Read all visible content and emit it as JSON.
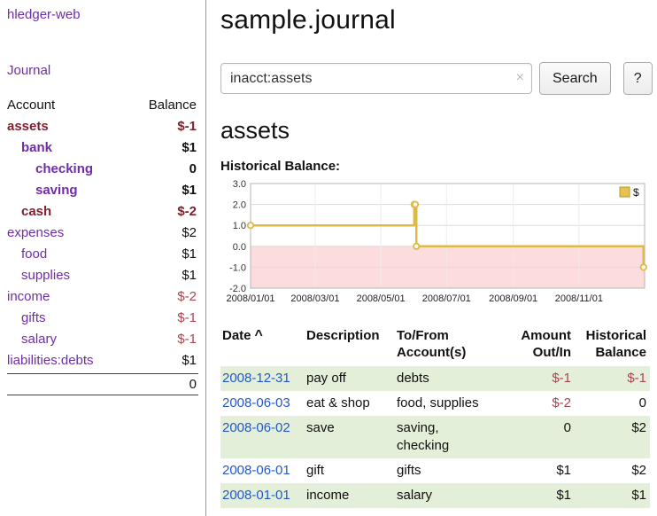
{
  "colors": {
    "sidebar_link": "#6f2da8",
    "date_link": "#2458c6",
    "negative": "#a94452",
    "negative_dark": "#7d1f2e",
    "row_stripe": "#e3efd8",
    "chart_line": "#ddba45",
    "chart_negative_area": "#fcdcdc",
    "legend_swatch": "#e6c34a"
  },
  "sidebar": {
    "app_title": "hledger-web",
    "journal_link": "Journal",
    "header": {
      "account": "Account",
      "balance": "Balance"
    },
    "accounts": [
      {
        "label": "assets",
        "balance": "$-1",
        "level": 0,
        "bold": true,
        "name_style": "negative-dark",
        "balance_style": "negative-dark"
      },
      {
        "label": "bank",
        "balance": "$1",
        "level": 1,
        "bold": true,
        "name_style": "purple",
        "balance_style": "normal"
      },
      {
        "label": "checking",
        "balance": "0",
        "level": 2,
        "bold": true,
        "name_style": "purple",
        "balance_style": "normal"
      },
      {
        "label": "saving",
        "balance": "$1",
        "level": 2,
        "bold": true,
        "name_style": "purple",
        "balance_style": "normal"
      },
      {
        "label": "cash",
        "balance": "$-2",
        "level": 1,
        "bold": true,
        "name_style": "negative-dark",
        "balance_style": "negative-dark"
      },
      {
        "label": "expenses",
        "balance": "$2",
        "level": 0,
        "bold": false,
        "name_style": "purple",
        "balance_style": "normal"
      },
      {
        "label": "food",
        "balance": "$1",
        "level": 1,
        "bold": false,
        "name_style": "purple",
        "balance_style": "normal"
      },
      {
        "label": "supplies",
        "balance": "$1",
        "level": 1,
        "bold": false,
        "name_style": "purple",
        "balance_style": "normal"
      },
      {
        "label": "income",
        "balance": "$-2",
        "level": 0,
        "bold": false,
        "name_style": "purple",
        "balance_style": "negative"
      },
      {
        "label": "gifts",
        "balance": "$-1",
        "level": 1,
        "bold": false,
        "name_style": "purple",
        "balance_style": "negative"
      },
      {
        "label": "salary",
        "balance": "$-1",
        "level": 1,
        "bold": false,
        "name_style": "purple",
        "balance_style": "negative"
      },
      {
        "label": "liabilities:debts",
        "balance": "$1",
        "level": 0,
        "bold": false,
        "name_style": "purple",
        "balance_style": "normal"
      }
    ],
    "total": "0"
  },
  "main": {
    "title": "sample.journal",
    "search": {
      "value": "inacct:assets",
      "clear_icon": "×",
      "search_button": "Search",
      "help_button": "?"
    },
    "account_heading": "assets",
    "chart_title": "Historical Balance:"
  },
  "chart_data": {
    "type": "line",
    "step": true,
    "title": "Historical Balance:",
    "ylim": [
      -2.0,
      3.0
    ],
    "y_ticks": [
      3.0,
      2.0,
      1.0,
      0.0,
      -1.0,
      -2.0
    ],
    "x_range": [
      "2008-01-01",
      "2009-01-01"
    ],
    "x_ticks": [
      {
        "date": "2008-01-01",
        "label": "2008/01/01"
      },
      {
        "date": "2008-03-01",
        "label": "2008/03/01"
      },
      {
        "date": "2008-05-01",
        "label": "2008/05/01"
      },
      {
        "date": "2008-07-01",
        "label": "2008/07/01"
      },
      {
        "date": "2008-09-01",
        "label": "2008/09/01"
      },
      {
        "date": "2008-11-01",
        "label": "2008/11/01"
      }
    ],
    "series": [
      {
        "name": "$",
        "color": "#ddba45",
        "points": [
          [
            "2008-01-01",
            1
          ],
          [
            "2008-06-01",
            2
          ],
          [
            "2008-06-02",
            2
          ],
          [
            "2008-06-03",
            0
          ],
          [
            "2008-12-31",
            -1
          ]
        ]
      }
    ],
    "legend": {
      "position": "top-right",
      "items": [
        {
          "label": "$",
          "swatch": "#e6c34a"
        }
      ]
    },
    "negative_area_fill": "#fcdcdc",
    "grid": true
  },
  "register": {
    "headers": [
      "Date",
      "Description",
      "To/From\nAccount(s)",
      "Amount\nOut/In",
      "Historical\nBalance"
    ],
    "sort_icon": "^",
    "rows": [
      {
        "date": "2008-12-31",
        "description": "pay off",
        "accounts": "debts",
        "amount": "$-1",
        "balance": "$-1",
        "amount_negative": true,
        "balance_negative": true
      },
      {
        "date": "2008-06-03",
        "description": "eat & shop",
        "accounts": "food, supplies",
        "amount": "$-2",
        "balance": "0",
        "amount_negative": true,
        "balance_negative": false
      },
      {
        "date": "2008-06-02",
        "description": "save",
        "accounts": "saving,\nchecking",
        "amount": "0",
        "balance": "$2",
        "amount_negative": false,
        "balance_negative": false
      },
      {
        "date": "2008-06-01",
        "description": "gift",
        "accounts": "gifts",
        "amount": "$1",
        "balance": "$2",
        "amount_negative": false,
        "balance_negative": false
      },
      {
        "date": "2008-01-01",
        "description": "income",
        "accounts": "salary",
        "amount": "$1",
        "balance": "$1",
        "amount_negative": false,
        "balance_negative": false
      }
    ]
  }
}
